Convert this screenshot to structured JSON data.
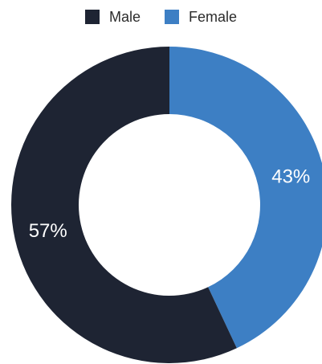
{
  "chart_data": {
    "type": "pie",
    "donut": true,
    "legend_position": "top",
    "series": [
      {
        "name": "Male",
        "value": 57,
        "label": "57%",
        "color": "#1e2433"
      },
      {
        "name": "Female",
        "value": 43,
        "label": "43%",
        "color": "#3d7fc4"
      }
    ]
  }
}
